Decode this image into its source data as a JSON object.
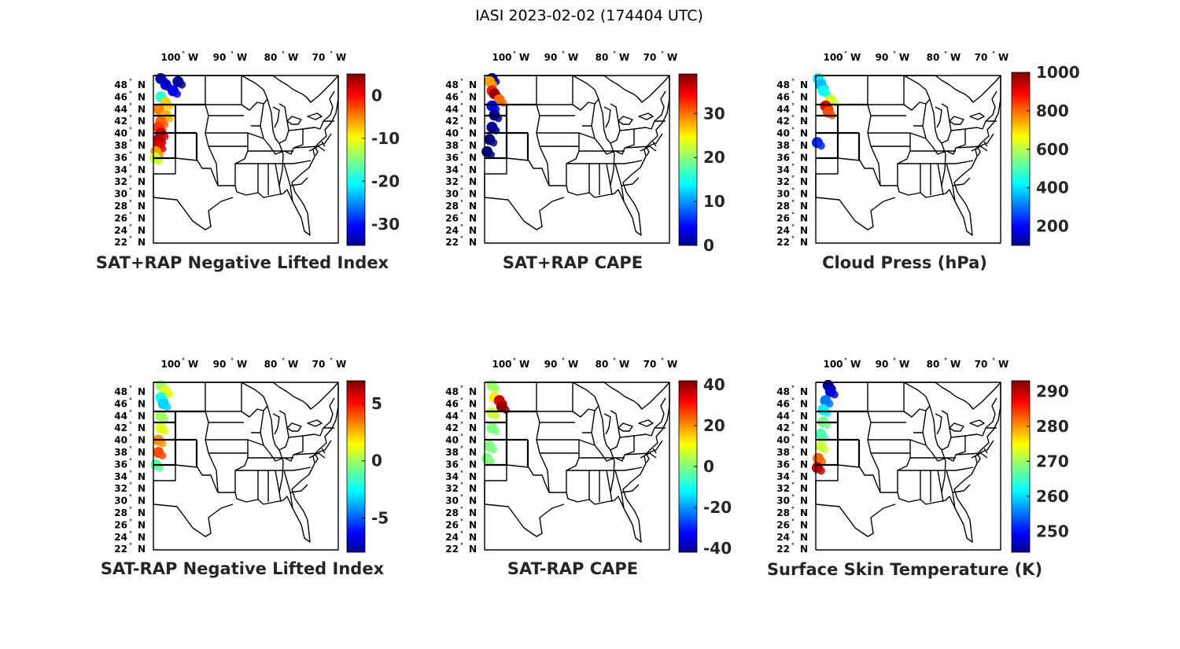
{
  "figure_title": "IASI 2023-02-02 (174404 UTC)",
  "lon_labels": [
    "100",
    "90",
    "80",
    "70"
  ],
  "lon_suffix": "W",
  "lat_labels": [
    "48",
    "46",
    "44",
    "42",
    "40",
    "38",
    "36",
    "34",
    "32",
    "30",
    "28",
    "26",
    "24",
    "22"
  ],
  "lat_suffix": "N",
  "degree_symbol": "°",
  "colormap": "jet",
  "chart_data": [
    {
      "type": "map",
      "title": "SAT+RAP Negative Lifted Index",
      "colorbar": {
        "min": -35,
        "max": 5,
        "ticks": [
          "0",
          "-10",
          "-20",
          "-30"
        ],
        "tick_values": [
          0,
          -10,
          -20,
          -30
        ]
      },
      "swath": [
        {
          "lat": 49.0,
          "lon": -103.0,
          "value": -33
        },
        {
          "lat": 48.0,
          "lon": -102.0,
          "value": -32
        },
        {
          "lat": 47.0,
          "lon": -100.5,
          "value": -30
        },
        {
          "lat": 48.5,
          "lon": -99.5,
          "value": -34
        },
        {
          "lat": 46.0,
          "lon": -103.0,
          "value": -18
        },
        {
          "lat": 45.0,
          "lon": -102.0,
          "value": -8
        },
        {
          "lat": 44.0,
          "lon": -103.5,
          "value": -5
        },
        {
          "lat": 43.0,
          "lon": -102.0,
          "value": -7
        },
        {
          "lat": 42.0,
          "lon": -103.0,
          "value": -4
        },
        {
          "lat": 41.0,
          "lon": -103.5,
          "value": -2
        },
        {
          "lat": 40.0,
          "lon": -103.0,
          "value": 2
        },
        {
          "lat": 39.0,
          "lon": -103.5,
          "value": 3
        },
        {
          "lat": 38.0,
          "lon": -103.5,
          "value": 1
        },
        {
          "lat": 37.0,
          "lon": -104.0,
          "value": -6
        },
        {
          "lat": 36.0,
          "lon": -104.2,
          "value": -12
        }
      ]
    },
    {
      "type": "map",
      "title": "SAT+RAP CAPE",
      "colorbar": {
        "min": 0,
        "max": 39,
        "ticks": [
          "30",
          "20",
          "10",
          "0"
        ],
        "tick_values": [
          30,
          20,
          10,
          0
        ]
      },
      "swath": [
        {
          "lat": 49.0,
          "lon": -103.0,
          "value": 2
        },
        {
          "lat": 48.5,
          "lon": -103.5,
          "value": 28
        },
        {
          "lat": 47.0,
          "lon": -103.0,
          "value": 33
        },
        {
          "lat": 46.5,
          "lon": -102.5,
          "value": 38
        },
        {
          "lat": 45.5,
          "lon": -101.5,
          "value": 30
        },
        {
          "lat": 44.5,
          "lon": -103.0,
          "value": 5
        },
        {
          "lat": 43.0,
          "lon": -102.5,
          "value": 1
        },
        {
          "lat": 41.0,
          "lon": -103.0,
          "value": 1
        },
        {
          "lat": 39.0,
          "lon": -103.5,
          "value": 0
        },
        {
          "lat": 37.0,
          "lon": -104.0,
          "value": 0
        }
      ]
    },
    {
      "type": "map",
      "title": "Cloud Press (hPa)",
      "colorbar": {
        "min": 100,
        "max": 1000,
        "ticks": [
          "1000",
          "800",
          "600",
          "400",
          "200"
        ],
        "tick_values": [
          1000,
          800,
          600,
          400,
          200
        ]
      },
      "swath": [
        {
          "lat": 49.0,
          "lon": -104.0,
          "value": 420
        },
        {
          "lat": 48.0,
          "lon": -103.5,
          "value": 380
        },
        {
          "lat": 47.0,
          "lon": -103.0,
          "value": 450
        },
        {
          "lat": 45.5,
          "lon": -101.5,
          "value": 620
        },
        {
          "lat": 44.5,
          "lon": -102.5,
          "value": 900
        },
        {
          "lat": 43.5,
          "lon": -102.0,
          "value": 820
        },
        {
          "lat": 38.5,
          "lon": -104.2,
          "value": 250
        }
      ]
    },
    {
      "type": "map",
      "title": "SAT-RAP Negative Lifted Index",
      "colorbar": {
        "min": -8,
        "max": 7,
        "ticks": [
          "5",
          "0",
          "-5"
        ],
        "tick_values": [
          5,
          0,
          -5
        ]
      },
      "swath": [
        {
          "lat": 49.0,
          "lon": -103.0,
          "value": 0
        },
        {
          "lat": 48.0,
          "lon": -102.0,
          "value": 1
        },
        {
          "lat": 47.0,
          "lon": -103.0,
          "value": -2
        },
        {
          "lat": 46.0,
          "lon": -102.5,
          "value": -3
        },
        {
          "lat": 44.0,
          "lon": -103.0,
          "value": 0
        },
        {
          "lat": 42.0,
          "lon": -103.0,
          "value": 1
        },
        {
          "lat": 40.0,
          "lon": -103.5,
          "value": 3
        },
        {
          "lat": 38.0,
          "lon": -103.5,
          "value": 4
        },
        {
          "lat": 36.0,
          "lon": -104.0,
          "value": -1
        }
      ]
    },
    {
      "type": "map",
      "title": "SAT-RAP CAPE",
      "colorbar": {
        "min": -42,
        "max": 42,
        "ticks": [
          "40",
          "20",
          "0",
          "-20",
          "-40"
        ],
        "tick_values": [
          40,
          20,
          0,
          -20,
          -40
        ]
      },
      "swath": [
        {
          "lat": 49.0,
          "lon": -103.0,
          "value": 2
        },
        {
          "lat": 47.0,
          "lon": -102.5,
          "value": 12
        },
        {
          "lat": 46.5,
          "lon": -101.5,
          "value": 35
        },
        {
          "lat": 45.5,
          "lon": -101.0,
          "value": 40
        },
        {
          "lat": 44.5,
          "lon": -103.0,
          "value": 6
        },
        {
          "lat": 42.0,
          "lon": -103.0,
          "value": 0
        },
        {
          "lat": 39.0,
          "lon": -103.5,
          "value": 0
        },
        {
          "lat": 37.0,
          "lon": -104.0,
          "value": 0
        }
      ]
    },
    {
      "type": "map",
      "title": "Surface Skin Temperature (K)",
      "colorbar": {
        "min": 244,
        "max": 293,
        "ticks": [
          "290",
          "280",
          "270",
          "260",
          "250"
        ],
        "tick_values": [
          290,
          280,
          270,
          260,
          250
        ]
      },
      "swath": [
        {
          "lat": 49.0,
          "lon": -102.0,
          "value": 245
        },
        {
          "lat": 48.0,
          "lon": -101.5,
          "value": 248
        },
        {
          "lat": 46.5,
          "lon": -102.5,
          "value": 256
        },
        {
          "lat": 45.0,
          "lon": -103.0,
          "value": 262
        },
        {
          "lat": 43.0,
          "lon": -103.0,
          "value": 268
        },
        {
          "lat": 41.0,
          "lon": -103.5,
          "value": 266
        },
        {
          "lat": 39.0,
          "lon": -103.5,
          "value": 272
        },
        {
          "lat": 37.0,
          "lon": -104.0,
          "value": 282
        },
        {
          "lat": 35.5,
          "lon": -104.2,
          "value": 290
        }
      ]
    }
  ]
}
